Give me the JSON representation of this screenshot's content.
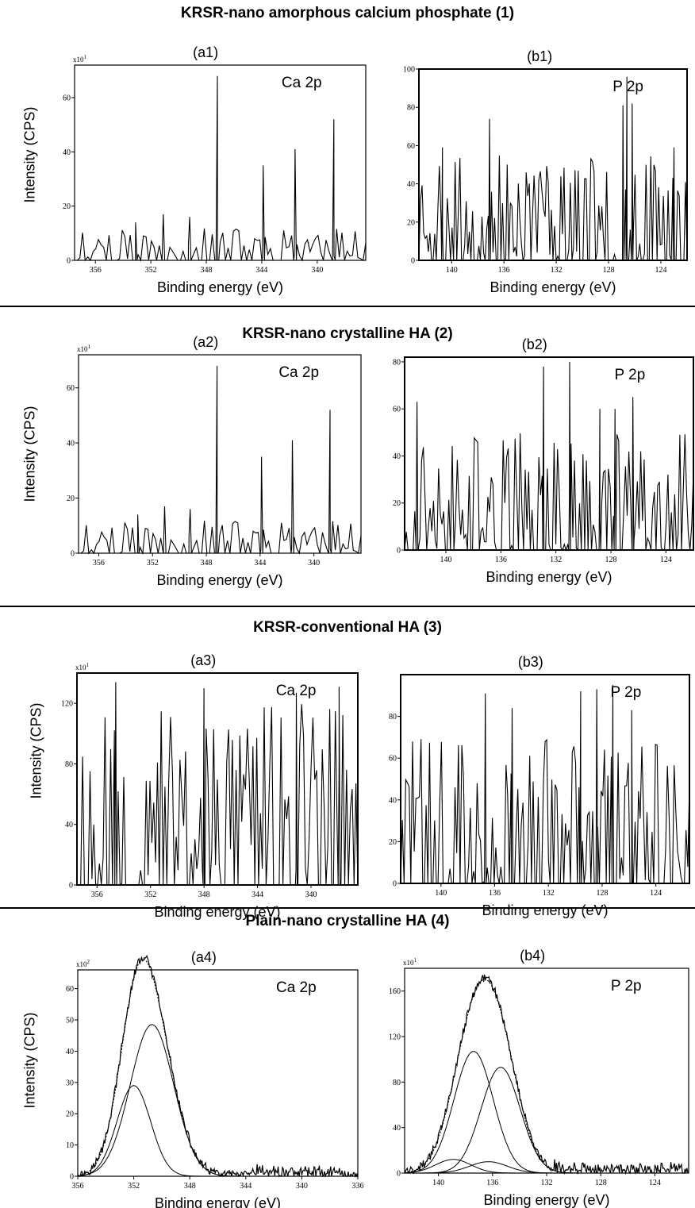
{
  "sections": [
    {
      "title": "KRSR-nano amorphous calcium phosphate (1)",
      "ylabel": "Intensity (CPS)"
    },
    {
      "title": "KRSR-nano crystalline HA (2)",
      "ylabel": "Intensity (CPS)"
    },
    {
      "title": "KRSR-conventional HA (3)",
      "ylabel": "Intensity (CPS)"
    },
    {
      "title": "Plain-nano crystalline HA (4)",
      "ylabel": "Intensity (CPS)"
    }
  ],
  "chart_data": [
    {
      "id": "a1",
      "type": "line",
      "title": "(a1)",
      "peak_label": "Ca 2p",
      "xlabel": "Binding energy (eV)",
      "multiplier": "x10",
      "multiplier_exp": "1",
      "xlim": [
        357.5,
        336.5
      ],
      "xticks": [
        356,
        352,
        348,
        344,
        340
      ],
      "ylim": [
        0,
        72
      ],
      "yticks": [
        0,
        20,
        40,
        60
      ],
      "seed": 11,
      "noise": {
        "n": 110,
        "max": 12
      },
      "peaks": [
        {
          "x": 347.2,
          "y": 68
        },
        {
          "x": 343.9,
          "y": 35
        },
        {
          "x": 341.6,
          "y": 41
        },
        {
          "x": 338.8,
          "y": 52
        },
        {
          "x": 351.1,
          "y": 17
        },
        {
          "x": 353.1,
          "y": 14
        },
        {
          "x": 349.2,
          "y": 16
        }
      ]
    },
    {
      "id": "b1",
      "type": "line",
      "title": "(b1)",
      "peak_label": "P 2p",
      "xlabel": "Binding energy (eV)",
      "multiplier": "",
      "multiplier_exp": "",
      "xlim": [
        142.5,
        122
      ],
      "xticks": [
        140,
        136,
        132,
        128,
        124
      ],
      "ylim": [
        0,
        100
      ],
      "yticks": [
        0,
        20,
        40,
        60,
        80,
        100
      ],
      "seed": 23,
      "noise": {
        "n": 170,
        "max": 55
      },
      "peaks": [
        {
          "x": 137.1,
          "y": 74
        },
        {
          "x": 126.6,
          "y": 96
        },
        {
          "x": 126.9,
          "y": 81
        },
        {
          "x": 126.2,
          "y": 82
        },
        {
          "x": 140.7,
          "y": 59
        },
        {
          "x": 123.0,
          "y": 59
        }
      ]
    },
    {
      "id": "a2",
      "type": "line",
      "title": "(a2)",
      "peak_label": "Ca 2p",
      "xlabel": "Binding energy (eV)",
      "multiplier": "x10",
      "multiplier_exp": "1",
      "xlim": [
        357.5,
        336.5
      ],
      "xticks": [
        356,
        352,
        348,
        344,
        340
      ],
      "ylim": [
        0,
        72
      ],
      "yticks": [
        0,
        20,
        40,
        60
      ],
      "seed": 11,
      "noise": {
        "n": 110,
        "max": 12
      },
      "peaks": [
        {
          "x": 347.2,
          "y": 68
        },
        {
          "x": 343.9,
          "y": 35
        },
        {
          "x": 341.6,
          "y": 41
        },
        {
          "x": 338.8,
          "y": 52
        },
        {
          "x": 351.1,
          "y": 17
        },
        {
          "x": 353.1,
          "y": 14
        },
        {
          "x": 349.2,
          "y": 16
        }
      ]
    },
    {
      "id": "b2",
      "type": "line",
      "title": "(b2)",
      "peak_label": "P 2p",
      "xlabel": "Binding energy (eV)",
      "multiplier": "",
      "multiplier_exp": "",
      "xlim": [
        143,
        122
      ],
      "xticks": [
        140,
        136,
        132,
        128,
        124
      ],
      "ylim": [
        0,
        82
      ],
      "yticks": [
        0,
        20,
        40,
        60,
        80
      ],
      "seed": 37,
      "noise": {
        "n": 170,
        "max": 50
      },
      "peaks": [
        {
          "x": 132.9,
          "y": 78
        },
        {
          "x": 131.0,
          "y": 80
        },
        {
          "x": 142.1,
          "y": 63
        },
        {
          "x": 126.4,
          "y": 65
        },
        {
          "x": 128.8,
          "y": 60
        },
        {
          "x": 127.7,
          "y": 60
        }
      ]
    },
    {
      "id": "a3",
      "type": "line",
      "title": "(a3)",
      "peak_label": "Ca 2p",
      "xlabel": "Binding energy (eV)",
      "multiplier": "x10",
      "multiplier_exp": "1",
      "xlim": [
        357.5,
        336.5
      ],
      "xticks": [
        356,
        352,
        348,
        344,
        340
      ],
      "ylim": [
        0,
        140
      ],
      "yticks": [
        0,
        40,
        80,
        120
      ],
      "seed": 53,
      "noise": {
        "n": 150,
        "max": 120
      },
      "peaks": [
        {
          "x": 354.6,
          "y": 134
        },
        {
          "x": 348.0,
          "y": 130
        },
        {
          "x": 341.1,
          "y": 127
        },
        {
          "x": 337.9,
          "y": 131
        }
      ]
    },
    {
      "id": "b3",
      "type": "line",
      "title": "(b3)",
      "peak_label": "P 2p",
      "xlabel": "Binding energy (eV)",
      "multiplier": "",
      "multiplier_exp": "",
      "xlim": [
        143,
        121.5
      ],
      "xticks": [
        140,
        136,
        132,
        128,
        124
      ],
      "ylim": [
        0,
        100
      ],
      "yticks": [
        0,
        20,
        40,
        60,
        80
      ],
      "seed": 71,
      "noise": {
        "n": 170,
        "max": 70
      },
      "peaks": [
        {
          "x": 136.7,
          "y": 91
        },
        {
          "x": 134.7,
          "y": 84
        },
        {
          "x": 129.6,
          "y": 92
        },
        {
          "x": 127.2,
          "y": 95
        },
        {
          "x": 125.8,
          "y": 83
        },
        {
          "x": 128.4,
          "y": 93
        }
      ]
    },
    {
      "id": "a4",
      "type": "line",
      "title": "(a4)",
      "peak_label": "Ca 2p",
      "xlabel": "Binding energy (eV)",
      "multiplier": "x10",
      "multiplier_exp": "2",
      "xlim": [
        356,
        336
      ],
      "xticks": [
        356,
        352,
        348,
        344,
        340,
        336
      ],
      "ylim": [
        0,
        66
      ],
      "yticks": [
        0,
        10,
        20,
        30,
        40,
        50,
        60
      ],
      "seed": 97,
      "envelope_noise": 1.3,
      "tail": {
        "from": 343.5,
        "to": 337,
        "amp": 2.8
      },
      "components": [
        {
          "center": 350.7,
          "height": 48.5,
          "sigma": 1.55
        },
        {
          "center": 352.0,
          "height": 29,
          "sigma": 1.2
        }
      ]
    },
    {
      "id": "b4",
      "type": "line",
      "title": "(b4)",
      "peak_label": "P 2p",
      "xlabel": "Binding energy (eV)",
      "multiplier": "x10",
      "multiplier_exp": "1",
      "xlim": [
        142.5,
        121.5
      ],
      "xticks": [
        140,
        136,
        132,
        128,
        124
      ],
      "ylim": [
        0,
        180
      ],
      "yticks": [
        0,
        40,
        80,
        120,
        160
      ],
      "seed": 131,
      "envelope_noise": 3.5,
      "tail": {
        "from": 131.5,
        "to": 122,
        "amp": 7
      },
      "components": [
        {
          "center": 137.4,
          "height": 107,
          "sigma": 1.45
        },
        {
          "center": 135.4,
          "height": 93,
          "sigma": 1.45
        },
        {
          "center": 138.9,
          "height": 12,
          "sigma": 1.3
        },
        {
          "center": 136.3,
          "height": 10,
          "sigma": 1.4
        }
      ]
    }
  ]
}
